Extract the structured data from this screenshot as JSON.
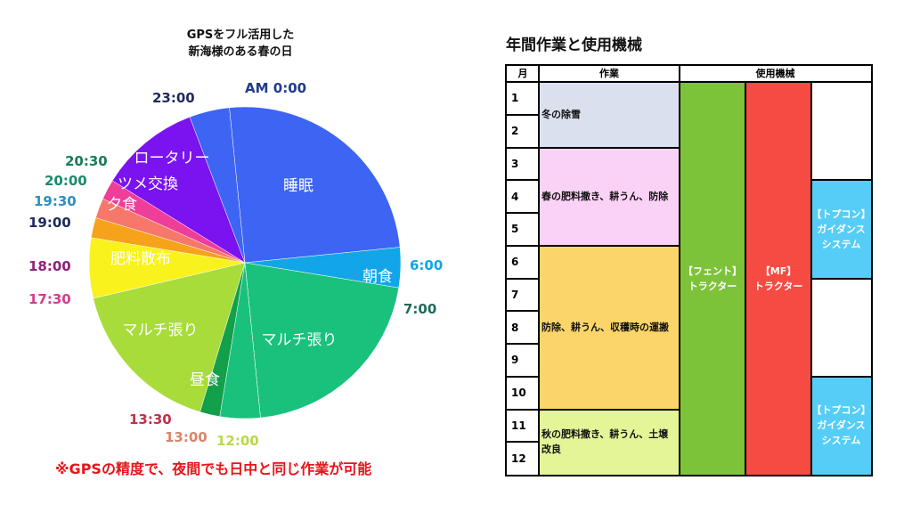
{
  "chart_data": [
    {
      "type": "pie",
      "title_lines": [
        "GPSをフル活用した",
        "新海様のある春の日"
      ],
      "start_label": "AM 0:00",
      "slices": [
        {
          "label": "睡眠",
          "start": "0:00",
          "end": "6:00",
          "hours": 6,
          "color": "#3d64f3",
          "text_color": "#ffffff"
        },
        {
          "label": "朝食",
          "start": "6:00",
          "end": "7:00",
          "hours": 1,
          "color": "#12a6e8",
          "text_color": "#ffffff"
        },
        {
          "label": "マルチ張り",
          "start": "7:00",
          "end": "12:00",
          "hours": 5,
          "color": "#19c17c",
          "text_color": "#ffffff"
        },
        {
          "label": "",
          "start": "12:00",
          "end": "13:00",
          "hours": 1,
          "color": "#19c17c",
          "text_color": "#ffffff"
        },
        {
          "label": "",
          "start": "13:00",
          "end": "13:30",
          "hours": 0.5,
          "color": "#12a04a",
          "text_color": "#ffffff"
        },
        {
          "label": "昼食",
          "start": "12:00",
          "end": "13:00",
          "hours": 0,
          "color": "#19c17c",
          "text_color": "#ffffff"
        },
        {
          "label": "マルチ張り",
          "start": "13:30",
          "end": "17:30",
          "hours": 4,
          "color": "#a8dc3a",
          "text_color": "#ffffff"
        },
        {
          "label": "肥料散布",
          "start": "17:30",
          "end": "19:00",
          "hours": 1.5,
          "color": "#f9f21c",
          "text_color": "#ffffff"
        },
        {
          "label": "",
          "start": "19:00",
          "end": "19:30",
          "hours": 0.5,
          "color": "#f6a21a",
          "text_color": "#ffffff"
        },
        {
          "label": "夕食",
          "start": "19:30",
          "end": "20:00",
          "hours": 0.5,
          "color": "#f7786a",
          "text_color": "#ffffff"
        },
        {
          "label": "ツメ交換",
          "start": "20:00",
          "end": "20:30",
          "hours": 0.5,
          "color": "#ef3d9a",
          "text_color": "#ffffff"
        },
        {
          "label": "ロータリー",
          "start": "20:30",
          "end": "23:00",
          "hours": 2.5,
          "color": "#7b12f0",
          "text_color": "#ffffff"
        },
        {
          "label": "",
          "start": "23:00",
          "end": "24:00",
          "hours": 1,
          "color": "#3d64f3",
          "text_color": "#ffffff"
        }
      ],
      "time_labels": [
        {
          "text": "AM 0:00",
          "color": "#1f3b8c"
        },
        {
          "text": "6:00",
          "color": "#12a6e8"
        },
        {
          "text": "7:00",
          "color": "#1d6b5b"
        },
        {
          "text": "12:00",
          "color": "#b9d94a"
        },
        {
          "text": "13:00",
          "color": "#d9856a"
        },
        {
          "text": "13:30",
          "color": "#c0304a"
        },
        {
          "text": "17:30",
          "color": "#d43b8b"
        },
        {
          "text": "18:00",
          "color": "#8e1f7a"
        },
        {
          "text": "19:00",
          "color": "#1c2a5c"
        },
        {
          "text": "19:30",
          "color": "#2d8fc0"
        },
        {
          "text": "20:00",
          "color": "#1a8a6e"
        },
        {
          "text": "20:30",
          "color": "#1a7a5a"
        },
        {
          "text": "23:00",
          "color": "#1f2a5c"
        }
      ],
      "note": "※GPSの精度で、夜間でも日中と同じ作業が可能"
    },
    {
      "type": "table",
      "title": "年間作業と使用機械",
      "headers": {
        "month": "月",
        "task": "作業",
        "machine": "使用機械"
      },
      "months": [
        "1",
        "2",
        "3",
        "4",
        "5",
        "6",
        "7",
        "8",
        "9",
        "10",
        "11",
        "12"
      ],
      "tasks": [
        {
          "text": "冬の除雪",
          "from": 1,
          "to": 2,
          "color": "#dbe0ef"
        },
        {
          "text": "春の肥料撒き、耕うん、防除",
          "from": 3,
          "to": 5,
          "color": "#fbd2f7"
        },
        {
          "text": "防除、耕うん、収穫時の運搬",
          "from": 6,
          "to": 10,
          "color": "#fcd56a"
        },
        {
          "text": "秋の肥料撒き、耕うん、土壌改良",
          "from": 11,
          "to": 12,
          "color": "#e3f597"
        }
      ],
      "machines": [
        {
          "text": "【フェント】\nトラクター",
          "from": 1,
          "to": 12,
          "column": 1,
          "color": "#7dc33a"
        },
        {
          "text": "【MF】\nトラクター",
          "from": 1,
          "to": 12,
          "column": 2,
          "color": "#f54b43"
        },
        {
          "text": "【トプコン】\nガイダンス\nシステム",
          "from": 4,
          "to": 6,
          "column": 3,
          "color": "#56cdf6"
        },
        {
          "text": "【トプコン】\nガイダンス\nシステム",
          "from": 10,
          "to": 12,
          "column": 3,
          "color": "#56cdf6"
        }
      ]
    }
  ]
}
